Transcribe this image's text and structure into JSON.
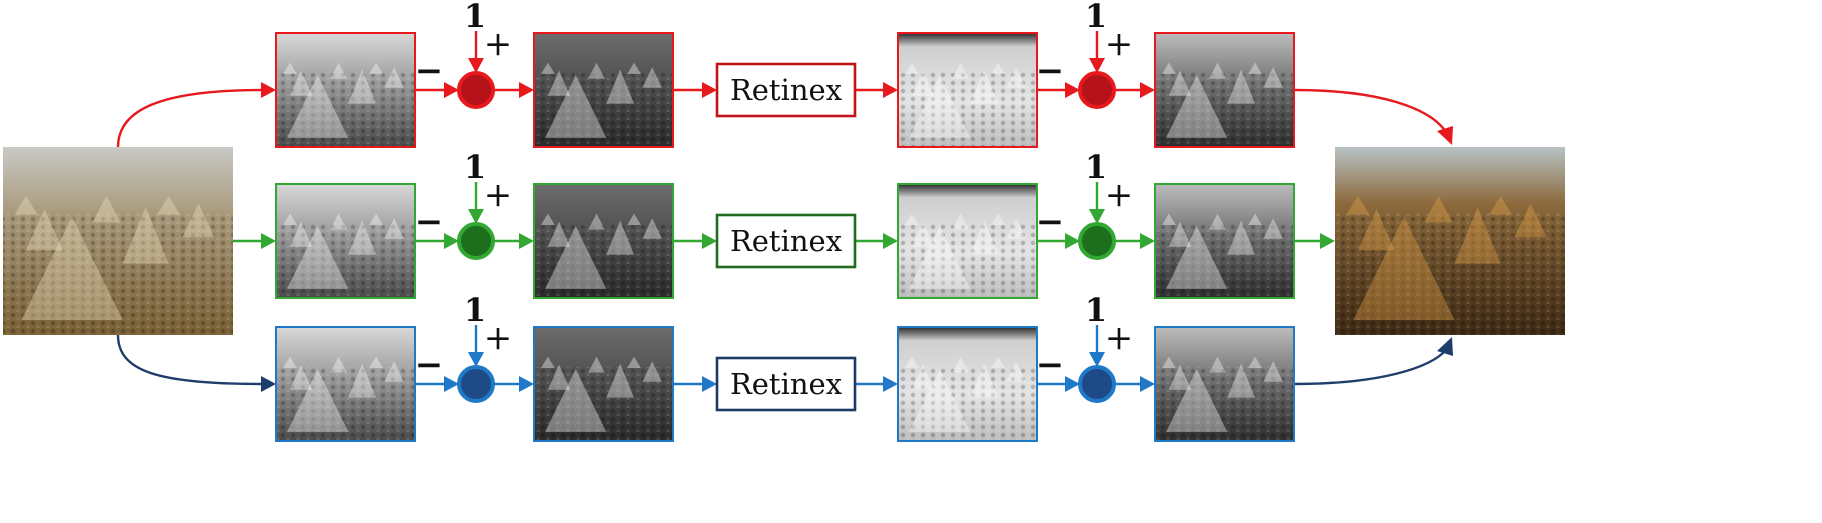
{
  "colors": {
    "background": "#ffffff",
    "red": "#e8191c",
    "red_box": "#c0141a",
    "red_node_fill": "#b5121a",
    "green": "#32a832",
    "green_box": "#1f6b1f",
    "green_node_fill": "#1d6e1d",
    "blue": "#1f78c8",
    "blue_box": "#1e3a66",
    "blue_node_fill": "#1e4a86",
    "input_curve_bottom": "#1e3d6b"
  },
  "input_image": {
    "name": "input-photo-hazy-haystacks",
    "description_shown": "hazy color photo of haystacks in a field"
  },
  "output_image": {
    "name": "output-photo-enhanced-haystacks"
  },
  "rows": [
    {
      "id": "red",
      "color_key": "red",
      "box_color_key": "red_box",
      "node_fill_key": "red_node_fill",
      "retinex_label": "Retinex",
      "constant_label_1": "1",
      "plus_label_1": "+",
      "minus_label_1": "−",
      "constant_label_2": "1",
      "plus_label_2": "+",
      "minus_label_2": "−",
      "images": [
        "channel-r",
        "inverted-r",
        "retinex-out-r",
        "result-r"
      ]
    },
    {
      "id": "green",
      "color_key": "green",
      "box_color_key": "green_box",
      "node_fill_key": "green_node_fill",
      "retinex_label": "Retinex",
      "constant_label_1": "1",
      "plus_label_1": "+",
      "minus_label_1": "−",
      "constant_label_2": "1",
      "plus_label_2": "+",
      "minus_label_2": "−",
      "images": [
        "channel-g",
        "inverted-g",
        "retinex-out-g",
        "result-g"
      ]
    },
    {
      "id": "blue",
      "color_key": "blue",
      "box_color_key": "blue_box",
      "node_fill_key": "blue_node_fill",
      "retinex_label": "Retinex",
      "constant_label_1": "1",
      "plus_label_1": "+",
      "minus_label_1": "−",
      "constant_label_2": "1",
      "plus_label_2": "+",
      "minus_label_2": "−",
      "images": [
        "channel-b",
        "inverted-b",
        "retinex-out-b",
        "result-b"
      ]
    }
  ]
}
